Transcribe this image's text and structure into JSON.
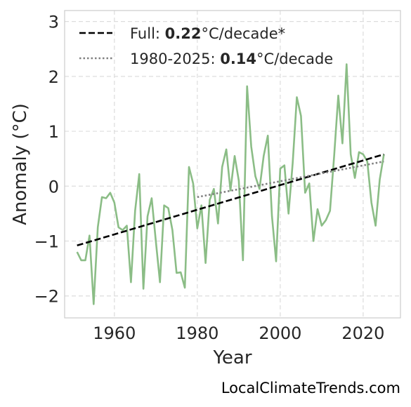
{
  "chart_data": {
    "type": "line",
    "xlabel": "Year",
    "ylabel": "Anomaly (°C)",
    "xlim": [
      1948,
      2029
    ],
    "ylim": [
      -2.4,
      3.2
    ],
    "xticks": [
      1960,
      1980,
      2000,
      2020
    ],
    "yticks": [
      3,
      2,
      1,
      0,
      -1,
      -2
    ],
    "ytick_labels": [
      "3",
      "2",
      "1",
      "0",
      "−1",
      "−2"
    ],
    "grid": true,
    "legend_position": "top-left",
    "series": [
      {
        "type": "line",
        "color": "#8bbd86",
        "x": [
          1951,
          1952,
          1953,
          1954,
          1955,
          1956,
          1957,
          1958,
          1959,
          1960,
          1961,
          1962,
          1963,
          1964,
          1965,
          1966,
          1967,
          1968,
          1969,
          1970,
          1971,
          1972,
          1973,
          1974,
          1975,
          1976,
          1977,
          1978,
          1979,
          1980,
          1981,
          1982,
          1983,
          1984,
          1985,
          1986,
          1987,
          1988,
          1989,
          1990,
          1991,
          1992,
          1993,
          1994,
          1995,
          1996,
          1997,
          1998,
          1999,
          2000,
          2001,
          2002,
          2003,
          2004,
          2005,
          2006,
          2007,
          2008,
          2009,
          2010,
          2011,
          2012,
          2013,
          2014,
          2015,
          2016,
          2017,
          2018,
          2019,
          2020,
          2021,
          2022,
          2023,
          2024,
          2025
        ],
        "y": [
          -1.2,
          -1.35,
          -1.35,
          -0.9,
          -2.15,
          -0.75,
          -0.2,
          -0.22,
          -0.12,
          -0.3,
          -0.75,
          -0.8,
          -0.72,
          -1.75,
          -0.45,
          0.22,
          -1.87,
          -0.55,
          -0.22,
          -1.0,
          -1.75,
          -0.35,
          -0.4,
          -0.8,
          -1.58,
          -1.57,
          -1.85,
          0.35,
          0.05,
          -0.77,
          -0.35,
          -1.4,
          -0.25,
          -0.05,
          -0.68,
          0.35,
          0.67,
          -0.08,
          0.55,
          0.1,
          -1.35,
          1.82,
          0.72,
          0.18,
          -0.05,
          0.55,
          0.92,
          -0.55,
          -1.37,
          0.32,
          0.38,
          -0.5,
          0.42,
          1.62,
          1.28,
          -0.12,
          0.05,
          -1.0,
          -0.42,
          -0.72,
          -0.62,
          -0.45,
          0.55,
          1.65,
          0.78,
          2.22,
          0.58,
          0.15,
          0.62,
          0.58,
          0.45,
          -0.3,
          -0.72,
          0.12,
          0.58
        ]
      },
      {
        "type": "line",
        "style": "dashed",
        "color": "#000000",
        "x": [
          1951,
          2025
        ],
        "y": [
          -1.08,
          0.58
        ]
      },
      {
        "type": "line",
        "style": "dotted",
        "color": "#808080",
        "x": [
          1980,
          2025
        ],
        "y": [
          -0.2,
          0.45
        ]
      }
    ],
    "legend": [
      {
        "prefix": "Full: ",
        "value": "0.22",
        "suffix": "°C/decade*",
        "style": "dashed",
        "color": "#000000"
      },
      {
        "prefix": "1980-2025: ",
        "value": "0.14",
        "suffix": "°C/decade",
        "style": "dotted",
        "color": "#808080"
      }
    ]
  },
  "watermark": "LocalClimateTrends.com"
}
